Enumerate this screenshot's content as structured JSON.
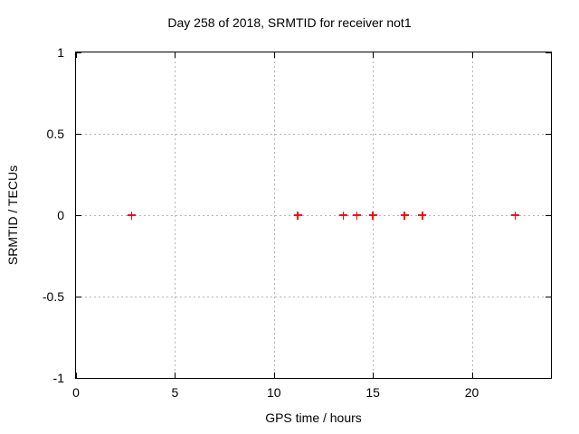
{
  "chart_data": {
    "type": "scatter",
    "title": "Day 258 of 2018, SRMTID for receiver not1",
    "xlabel": "GPS time / hours",
    "ylabel": "SRMTID / TECUs",
    "xlim": [
      0,
      24
    ],
    "ylim": [
      -1,
      1
    ],
    "xticks": [
      0,
      5,
      10,
      15,
      20
    ],
    "yticks": [
      -1,
      -0.5,
      0,
      0.5,
      1
    ],
    "grid": true,
    "legend": false,
    "marker_style": "plus",
    "colors": {
      "marker": "#ff0000",
      "grid": "#b4b4b4",
      "axis": "#000000",
      "text": "#000000",
      "background": "#ffffff"
    },
    "series": [
      {
        "x": [
          2.8,
          11.2,
          13.5,
          14.2,
          15.0,
          16.6,
          17.5,
          22.2
        ],
        "y": [
          0,
          0,
          0,
          0,
          0,
          0,
          0,
          0
        ]
      }
    ]
  }
}
